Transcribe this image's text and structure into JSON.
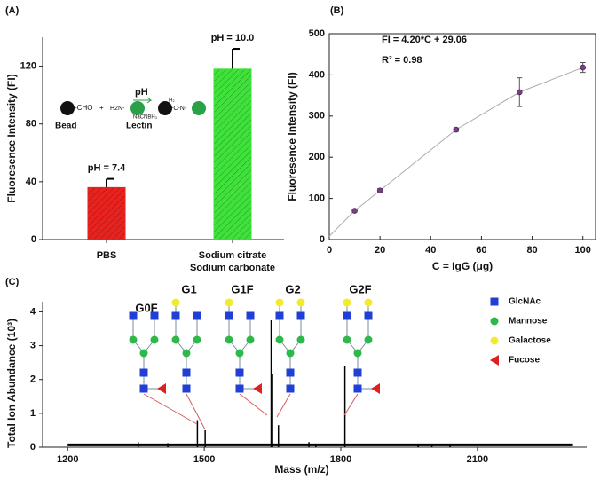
{
  "chart_data": [
    {
      "type": "bar",
      "panel": "(A)",
      "ylabel": "Fluoresence Intensity (FI)",
      "categories": [
        "PBS",
        "Sodium citrate\nSodium carbonate"
      ],
      "values": [
        36,
        118
      ],
      "errors": [
        6,
        14
      ],
      "colors": [
        "#e8231f",
        "#3fe23a"
      ],
      "annotations": [
        "pH = 7.4",
        "pH = 10.0"
      ],
      "ylim": [
        0,
        140
      ],
      "yticks": [
        0,
        40,
        80,
        120
      ],
      "inset_labels": [
        "-CHO",
        "+",
        "H2N-",
        "pH",
        "NaCNBH₃",
        "H₂",
        "-C-N-",
        "Bead",
        "Lectin"
      ]
    },
    {
      "type": "scatter",
      "panel": "(B)",
      "xlabel": "C = IgG (μg)",
      "ylabel": "Fluoresence Intensity (FI)",
      "annotations": [
        "FI = 4.20*C + 29.06",
        "R² = 0.98"
      ],
      "x": [
        10,
        20,
        50,
        75,
        100
      ],
      "values": [
        70,
        119,
        267,
        358,
        418
      ],
      "errors": [
        3,
        5,
        4,
        35,
        12
      ],
      "color": "#7a3b8f",
      "line": {
        "x": [
          0,
          10,
          20,
          50,
          75,
          100
        ],
        "values": [
          8,
          70,
          119,
          267,
          358,
          418
        ],
        "color": "#aaaaaa"
      },
      "xlim": [
        0,
        105
      ],
      "ylim": [
        0,
        500
      ],
      "xticks": [
        0,
        20,
        40,
        60,
        80,
        100
      ],
      "yticks": [
        0,
        100,
        200,
        300,
        400,
        500
      ]
    },
    {
      "type": "spectrum",
      "panel": "(C)",
      "xlabel": "Mass (m/z)",
      "ylabel": "Total Ion Abundance (10³)",
      "x": [
        1355,
        1420,
        1485,
        1502,
        1647,
        1650,
        1663,
        1730,
        1745,
        1809,
        1970,
        2000,
        2040
      ],
      "values": [
        0.15,
        0.12,
        0.8,
        0.5,
        3.75,
        2.15,
        0.65,
        0.15,
        0.1,
        2.4,
        0.1,
        0.1,
        0.08
      ],
      "color": "#000000",
      "baseline": {
        "x": [
          1200,
          2310
        ],
        "values": [
          0.07,
          0.07
        ]
      },
      "xlim": [
        1145,
        2340
      ],
      "ylim": [
        0,
        4.3
      ],
      "xticks": [
        1200,
        1500,
        1800,
        2100
      ],
      "yticks": [
        0,
        1,
        2,
        3,
        4
      ],
      "glycans": [
        "G0F",
        "G1",
        "G1F",
        "G2",
        "G2F"
      ],
      "glycan_legend": [
        {
          "name": "GlcNAc",
          "color": "#1f3fd6"
        },
        {
          "name": "Mannose",
          "color": "#2db84a"
        },
        {
          "name": "Galactose",
          "color": "#f2ea2a"
        },
        {
          "name": "Fucose",
          "color": "#e02020"
        }
      ]
    }
  ]
}
